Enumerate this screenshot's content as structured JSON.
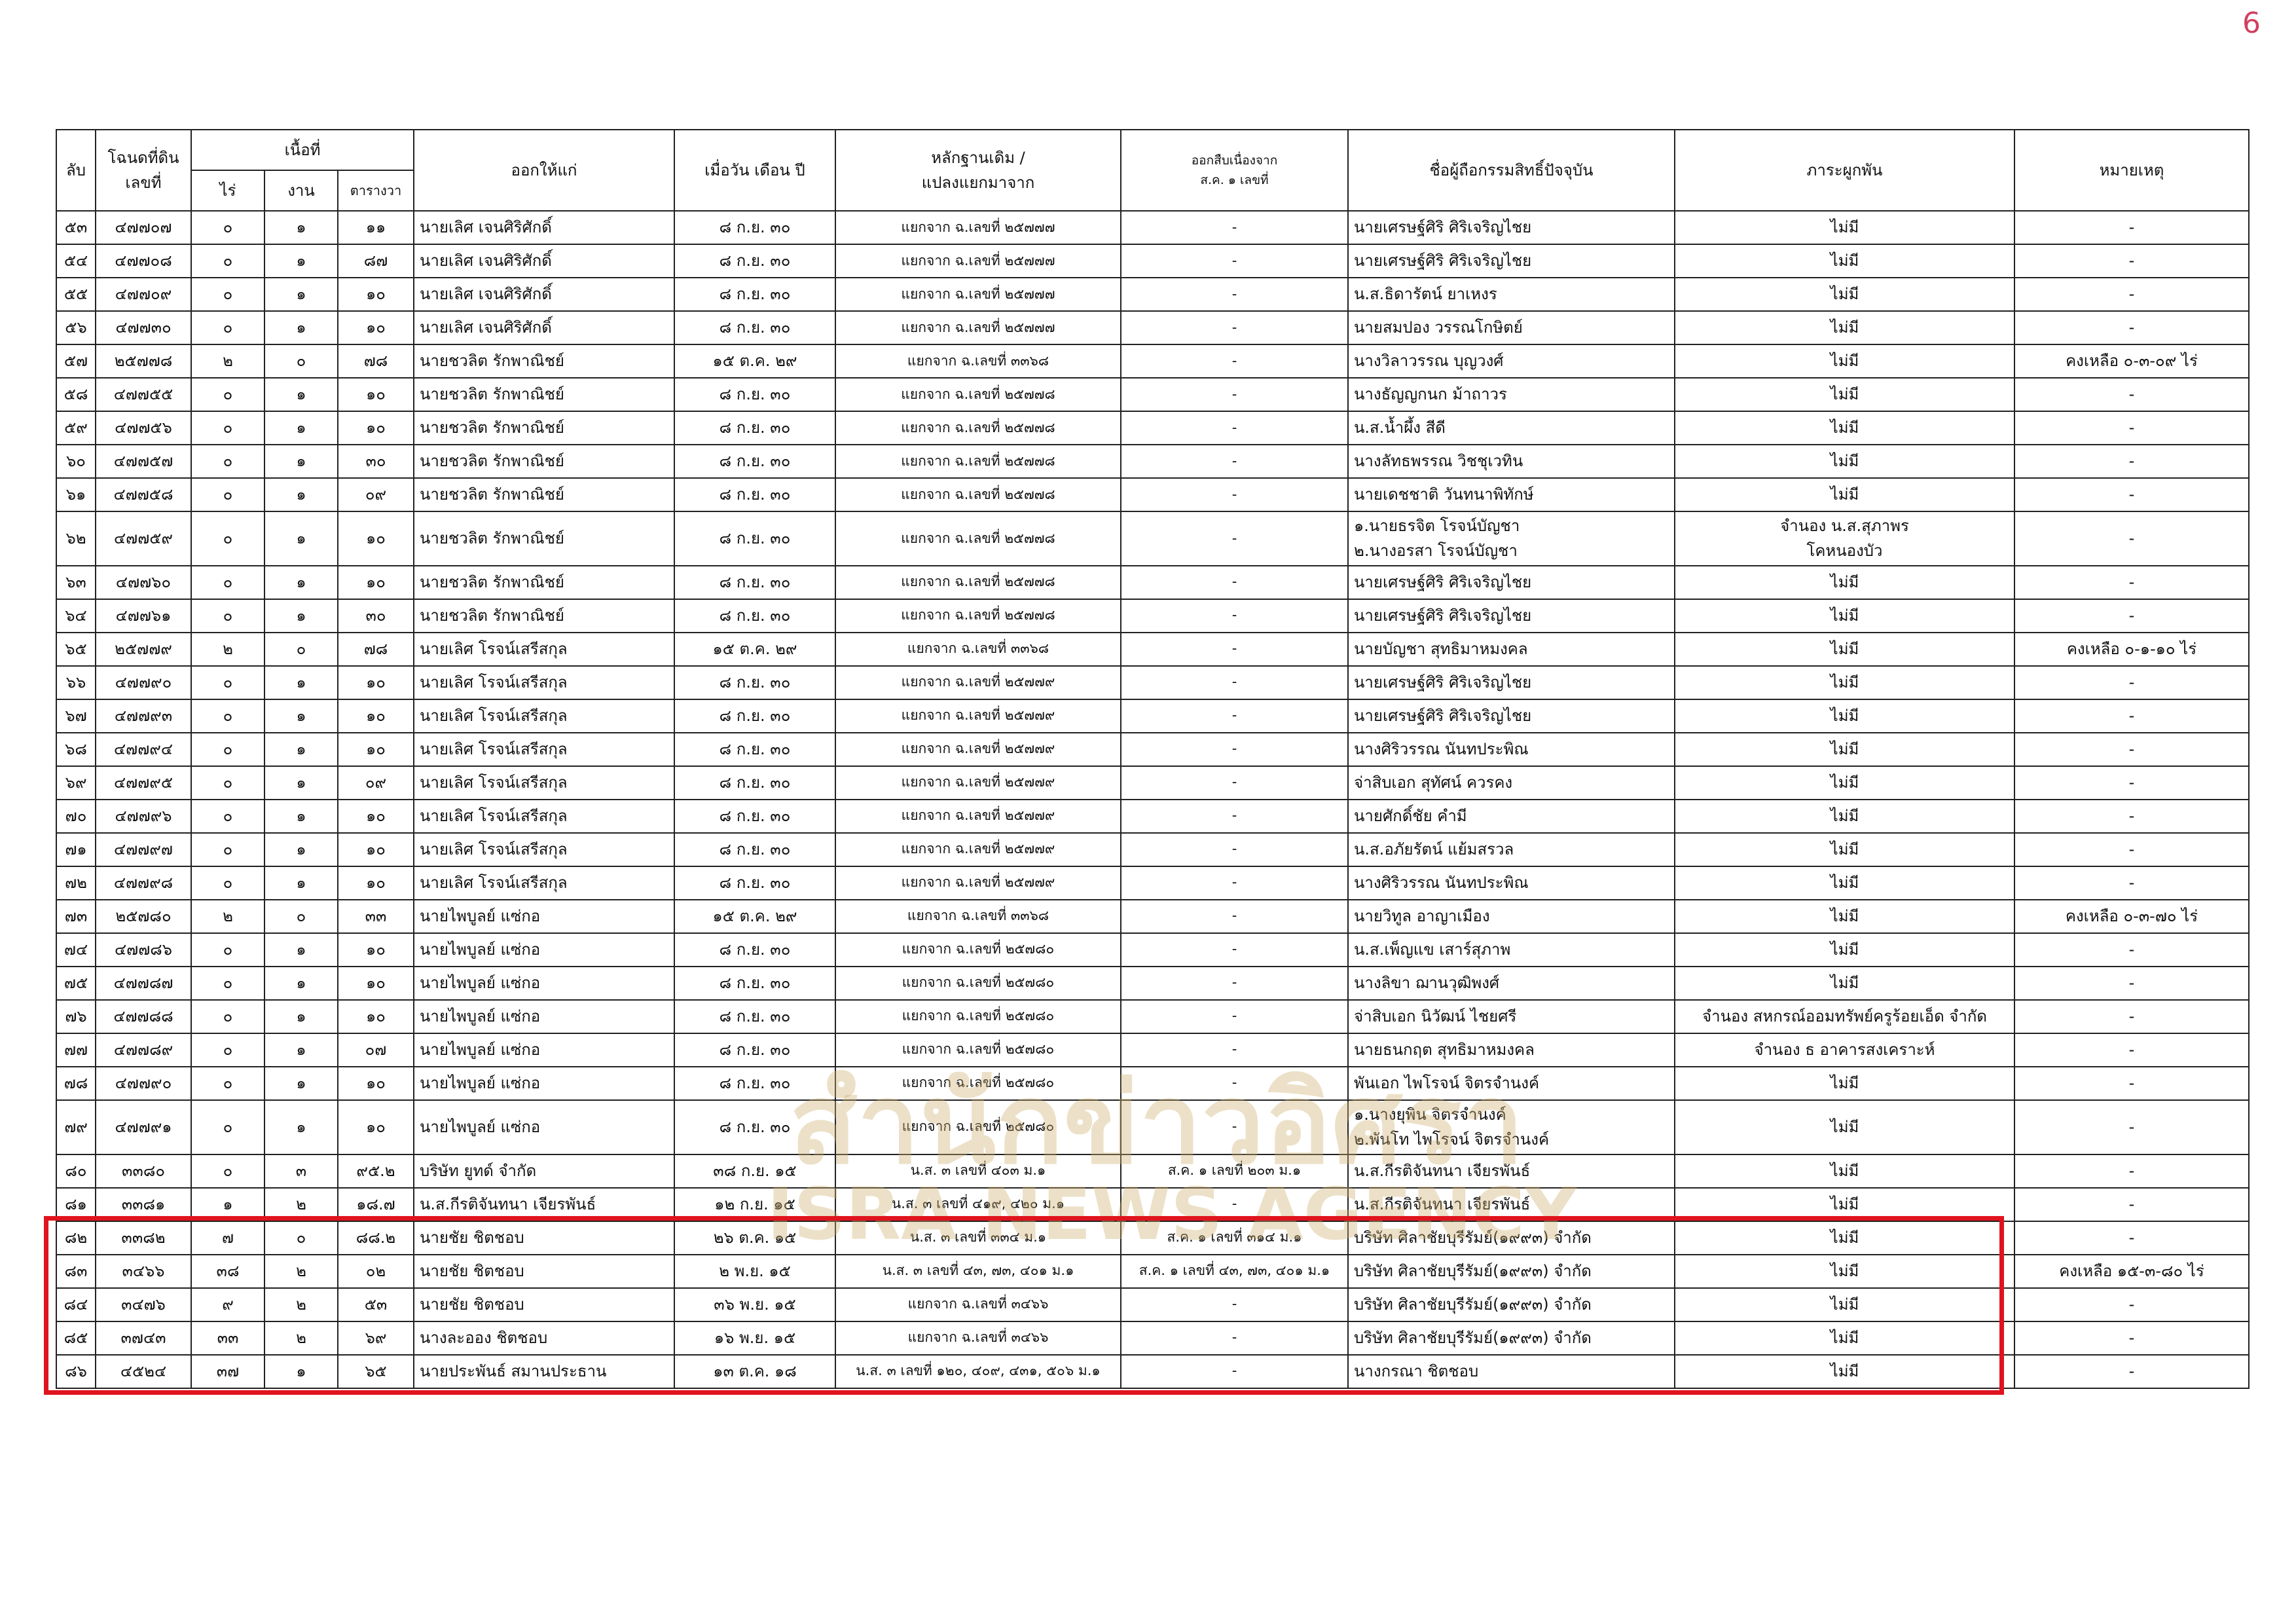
{
  "page_number": "6",
  "watermark": {
    "thai": "สำนักข่าวอิศรา",
    "english": "ISRA NEWS AGENCY"
  },
  "table": {
    "headers": [
      "ลับ",
      "โฉนดที่ดิน\nเลขที่",
      "เนื้อที่",
      "ออกให้แก่",
      "เมื่อวัน เดือน ปี",
      "หลักฐานเดิม /\nแปลงแยกมาจาก",
      "ออกสืบเนื่องจาก\nส.ค. ๑ เลขที่",
      "ชื่อผู้ถือกรรมสิทธิ์ปัจจุบัน",
      "ภาระผูกพัน",
      "หมายเหตุ"
    ],
    "area_subheaders": [
      "ไร่",
      "งาน",
      "ตารางวา"
    ],
    "rows": [
      [
        "๕๓",
        "๔๗๗๐๗",
        "๐",
        "๑",
        "๑๑",
        "นายเลิศ เจนศิริศักดิ์",
        "๘ ก.ย. ๓๐",
        "แยกจาก ฉ.เลขที่ ๒๕๗๗๗",
        "-",
        "นายเศรษฐ์ศิริ ศิริเจริญไชย",
        "ไม่มี",
        "-"
      ],
      [
        "๕๔",
        "๔๗๗๐๘",
        "๐",
        "๑",
        "๘๗",
        "นายเลิศ เจนศิริศักดิ์",
        "๘ ก.ย. ๓๐",
        "แยกจาก ฉ.เลขที่ ๒๕๗๗๗",
        "-",
        "นายเศรษฐ์ศิริ ศิริเจริญไชย",
        "ไม่มี",
        "-"
      ],
      [
        "๕๕",
        "๔๗๗๐๙",
        "๐",
        "๑",
        "๑๐",
        "นายเลิศ เจนศิริศักดิ์",
        "๘ ก.ย. ๓๐",
        "แยกจาก ฉ.เลขที่ ๒๕๗๗๗",
        "-",
        "น.ส.ธิดารัตน์ ยาเหงร",
        "ไม่มี",
        "-"
      ],
      [
        "๕๖",
        "๔๗๗๓๐",
        "๐",
        "๑",
        "๑๐",
        "นายเลิศ เจนศิริศักดิ์",
        "๘ ก.ย. ๓๐",
        "แยกจาก ฉ.เลขที่ ๒๕๗๗๗",
        "-",
        "นายสมปอง วรรณโกษิตย์",
        "ไม่มี",
        "-"
      ],
      [
        "๕๗",
        "๒๕๗๗๘",
        "๒",
        "๐",
        "๗๘",
        "นายชวลิต รักพาณิชย์",
        "๑๕ ต.ค. ๒๙",
        "แยกจาก ฉ.เลขที่ ๓๓๖๘",
        "-",
        "นางวิลาวรรณ บุญวงศ์",
        "ไม่มี",
        "คงเหลือ ๐-๓-๐๙ ไร่"
      ],
      [
        "๕๘",
        "๔๗๗๕๕",
        "๐",
        "๑",
        "๑๐",
        "นายชวลิต รักพาณิชย์",
        "๘ ก.ย. ๓๐",
        "แยกจาก ฉ.เลขที่ ๒๕๗๗๘",
        "-",
        "นางธัญญกนก ม้าถาวร",
        "ไม่มี",
        "-"
      ],
      [
        "๕๙",
        "๔๗๗๕๖",
        "๐",
        "๑",
        "๑๐",
        "นายชวลิต รักพาณิชย์",
        "๘ ก.ย. ๓๐",
        "แยกจาก ฉ.เลขที่ ๒๕๗๗๘",
        "-",
        "น.ส.น้ำผึ้ง สีดี",
        "ไม่มี",
        "-"
      ],
      [
        "๖๐",
        "๔๗๗๕๗",
        "๐",
        "๑",
        "๓๐",
        "นายชวลิต รักพาณิชย์",
        "๘ ก.ย. ๓๐",
        "แยกจาก ฉ.เลขที่ ๒๕๗๗๘",
        "-",
        "นางลัทธพรรณ วิชชุเวทิน",
        "ไม่มี",
        "-"
      ],
      [
        "๖๑",
        "๔๗๗๕๘",
        "๐",
        "๑",
        "๐๙",
        "นายชวลิต รักพาณิชย์",
        "๘ ก.ย. ๓๐",
        "แยกจาก ฉ.เลขที่ ๒๕๗๗๘",
        "-",
        "นายเดชชาติ วันทนาพิทักษ์",
        "ไม่มี",
        "-"
      ],
      [
        "๖๒",
        "๔๗๗๕๙",
        "๐",
        "๑",
        "๑๐",
        "นายชวลิต รักพาณิชย์",
        "๘ ก.ย. ๓๐",
        "แยกจาก ฉ.เลขที่ ๒๕๗๗๘",
        "-",
        "๑.นายธรจิต โรจน์บัญชา\n๒.นางอรสา โรจน์บัญชา",
        "จำนอง น.ส.สุภาพร\nโคหนองบัว",
        "-"
      ],
      [
        "๖๓",
        "๔๗๗๖๐",
        "๐",
        "๑",
        "๑๐",
        "นายชวลิต รักพาณิชย์",
        "๘ ก.ย. ๓๐",
        "แยกจาก ฉ.เลขที่ ๒๕๗๗๘",
        "-",
        "นายเศรษฐ์ศิริ ศิริเจริญไชย",
        "ไม่มี",
        "-"
      ],
      [
        "๖๔",
        "๔๗๗๖๑",
        "๐",
        "๑",
        "๓๐",
        "นายชวลิต รักพาณิชย์",
        "๘ ก.ย. ๓๐",
        "แยกจาก ฉ.เลขที่ ๒๕๗๗๘",
        "-",
        "นายเศรษฐ์ศิริ ศิริเจริญไชย",
        "ไม่มี",
        "-"
      ],
      [
        "๖๕",
        "๒๕๗๗๙",
        "๒",
        "๐",
        "๗๘",
        "นายเลิศ โรจน์เสรีสกุล",
        "๑๕ ต.ค. ๒๙",
        "แยกจาก ฉ.เลขที่ ๓๓๖๘",
        "-",
        "นายบัญชา สุทธิมาหมงคล",
        "ไม่มี",
        "คงเหลือ ๐-๑-๑๐ ไร่"
      ],
      [
        "๖๖",
        "๔๗๗๙๐",
        "๐",
        "๑",
        "๑๐",
        "นายเลิศ โรจน์เสรีสกุล",
        "๘ ก.ย. ๓๐",
        "แยกจาก ฉ.เลขที่ ๒๕๗๗๙",
        "-",
        "นายเศรษฐ์ศิริ ศิริเจริญไชย",
        "ไม่มี",
        "-"
      ],
      [
        "๖๗",
        "๔๗๗๙๓",
        "๐",
        "๑",
        "๑๐",
        "นายเลิศ โรจน์เสรีสกุล",
        "๘ ก.ย. ๓๐",
        "แยกจาก ฉ.เลขที่ ๒๕๗๗๙",
        "-",
        "นายเศรษฐ์ศิริ ศิริเจริญไชย",
        "ไม่มี",
        "-"
      ],
      [
        "๖๘",
        "๔๗๗๙๔",
        "๐",
        "๑",
        "๑๐",
        "นายเลิศ โรจน์เสรีสกุล",
        "๘ ก.ย. ๓๐",
        "แยกจาก ฉ.เลขที่ ๒๕๗๗๙",
        "-",
        "นางศิริวรรณ นันทประพิณ",
        "ไม่มี",
        "-"
      ],
      [
        "๖๙",
        "๔๗๗๙๕",
        "๐",
        "๑",
        "๐๙",
        "นายเลิศ โรจน์เสรีสกุล",
        "๘ ก.ย. ๓๐",
        "แยกจาก ฉ.เลขที่ ๒๕๗๗๙",
        "-",
        "จ่าสิบเอก สุทัศน์ ควรคง",
        "ไม่มี",
        "-"
      ],
      [
        "๗๐",
        "๔๗๗๙๖",
        "๐",
        "๑",
        "๑๐",
        "นายเลิศ โรจน์เสรีสกุล",
        "๘ ก.ย. ๓๐",
        "แยกจาก ฉ.เลขที่ ๒๕๗๗๙",
        "-",
        "นายศักดิ์ชัย คำมี",
        "ไม่มี",
        "-"
      ],
      [
        "๗๑",
        "๔๗๗๙๗",
        "๐",
        "๑",
        "๑๐",
        "นายเลิศ โรจน์เสรีสกุล",
        "๘ ก.ย. ๓๐",
        "แยกจาก ฉ.เลขที่ ๒๕๗๗๙",
        "-",
        "น.ส.อภัยรัตน์ แย้มสรวล",
        "ไม่มี",
        "-"
      ],
      [
        "๗๒",
        "๔๗๗๙๘",
        "๐",
        "๑",
        "๑๐",
        "นายเลิศ โรจน์เสรีสกุล",
        "๘ ก.ย. ๓๐",
        "แยกจาก ฉ.เลขที่ ๒๕๗๗๙",
        "-",
        "นางศิริวรรณ นันทประพิณ",
        "ไม่มี",
        "-"
      ],
      [
        "๗๓",
        "๒๕๗๘๐",
        "๒",
        "๐",
        "๓๓",
        "นายไพบูลย์ แซ่กอ",
        "๑๕ ต.ค. ๒๙",
        "แยกจาก ฉ.เลขที่ ๓๓๖๘",
        "-",
        "นายวิทูล อาญาเมือง",
        "ไม่มี",
        "คงเหลือ ๐-๓-๗๐ ไร่"
      ],
      [
        "๗๔",
        "๔๗๗๘๖",
        "๐",
        "๑",
        "๑๐",
        "นายไพบูลย์ แซ่กอ",
        "๘ ก.ย. ๓๐",
        "แยกจาก ฉ.เลขที่ ๒๕๗๘๐",
        "-",
        "น.ส.เพ็ญแข เสาร์สุภาพ",
        "ไม่มี",
        "-"
      ],
      [
        "๗๕",
        "๔๗๗๘๗",
        "๐",
        "๑",
        "๑๐",
        "นายไพบูลย์ แซ่กอ",
        "๘ ก.ย. ๓๐",
        "แยกจาก ฉ.เลขที่ ๒๕๗๘๐",
        "-",
        "นางลิขา ฌานวุฒิพงศ์",
        "ไม่มี",
        "-"
      ],
      [
        "๗๖",
        "๔๗๗๘๘",
        "๐",
        "๑",
        "๑๐",
        "นายไพบูลย์ แซ่กอ",
        "๘ ก.ย. ๓๐",
        "แยกจาก ฉ.เลขที่ ๒๕๗๘๐",
        "-",
        "จ่าสิบเอก นิวัฒน์ ไชยศรี",
        "จำนอง สหกรณ์ออมทรัพย์ครูร้อยเอ็ด จำกัด\n ",
        "-"
      ],
      [
        "๗๗",
        "๔๗๗๘๙",
        "๐",
        "๑",
        "๐๗",
        "นายไพบูลย์ แซ่กอ",
        "๘ ก.ย. ๓๐",
        "แยกจาก ฉ.เลขที่ ๒๕๗๘๐",
        "-",
        "นายธนกฤต สุทธิมาหมงคล",
        "จำนอง ธ อาคารสงเคราะห์",
        "-"
      ],
      [
        "๗๘",
        "๔๗๗๙๐",
        "๐",
        "๑",
        "๑๐",
        "นายไพบูลย์ แซ่กอ",
        "๘ ก.ย. ๓๐",
        "แยกจาก ฉ.เลขที่ ๒๕๗๘๐",
        "-",
        "พันเอก ไพโรจน์ จิตรจำนงค์",
        "ไม่มี",
        "-"
      ],
      [
        "๗๙",
        "๔๗๗๙๑",
        "๐",
        "๑",
        "๑๐",
        "นายไพบูลย์ แซ่กอ",
        "๘ ก.ย. ๓๐",
        "แยกจาก ฉ.เลขที่ ๒๕๗๘๐",
        "-",
        "๑.นางยุพิน จิตรจำนงค์\n๒.พันโท ไพโรจน์ จิตรจำนงค์",
        "ไม่มี",
        "-"
      ],
      [
        "๘๐",
        "๓๓๘๐",
        "๐",
        "๓",
        "๙๕.๒",
        "บริษัท ยูทด์ จำกัด",
        "๓๘ ก.ย. ๑๕",
        "น.ส. ๓ เลขที่ ๔๐๓ ม.๑",
        "ส.ค. ๑ เลขที่ ๒๐๓ ม.๑",
        "น.ส.กีรติจันทนา เจียรพันธ์",
        "ไม่มี",
        "-"
      ],
      [
        "๘๑",
        "๓๓๘๑",
        "๑",
        "๒",
        "๑๘.๗",
        "น.ส.กีรติจันทนา เจียรพันธ์",
        "๑๒ ก.ย. ๑๕",
        "น.ส. ๓ เลขที่ ๔๑๙, ๔๒๐ ม.๑",
        "-",
        "น.ส.กีรติจันทนา เจียรพันธ์",
        "ไม่มี",
        "-"
      ],
      [
        "๘๒",
        "๓๓๘๒",
        "๗",
        "๐",
        "๘๘.๒",
        "นายชัย ชิตชอบ",
        "๒๖ ต.ค. ๑๕",
        "น.ส. ๓ เลขที่ ๓๓๔ ม.๑",
        "ส.ค. ๑ เลขที่ ๓๑๔ ม.๑",
        "บริษัท ศิลาชัยบุรีรัมย์(๑๙๙๓) จำกัด",
        "ไม่มี",
        "-"
      ],
      [
        "๘๓",
        "๓๔๖๖",
        "๓๘",
        "๒",
        "๐๒",
        "นายชัย ชิตชอบ",
        "๒ พ.ย. ๑๕",
        "น.ส. ๓ เลขที่ ๔๓, ๗๓, ๔๐๑ ม.๑",
        "ส.ค. ๑ เลขที่ ๔๓, ๗๓, ๔๐๑ ม.๑",
        "บริษัท ศิลาชัยบุรีรัมย์(๑๙๙๓) จำกัด",
        "ไม่มี",
        "คงเหลือ ๑๕-๓-๘๐ ไร่"
      ],
      [
        "๘๔",
        "๓๔๗๖",
        "๙",
        "๒",
        "๕๓",
        "นายชัย ชิตชอบ",
        "๓๖ พ.ย. ๑๕",
        "แยกจาก ฉ.เลขที่ ๓๔๖๖",
        "-",
        "บริษัท ศิลาชัยบุรีรัมย์(๑๙๙๓) จำกัด",
        "ไม่มี",
        "-"
      ],
      [
        "๘๕",
        "๓๗๔๓",
        "๓๓",
        "๒",
        "๖๙",
        "นางละออง ชิตชอบ",
        "๑๖ พ.ย. ๑๕",
        "แยกจาก ฉ.เลขที่ ๓๔๖๖",
        "-",
        "บริษัท ศิลาชัยบุรีรัมย์(๑๙๙๓) จำกัด",
        "ไม่มี",
        "-"
      ],
      [
        "๘๖",
        "๔๕๒๔",
        "๓๗",
        "๑",
        "๖๕",
        "นายประพันธ์ สมานประธาน",
        "๑๓ ต.ค. ๑๘",
        "น.ส. ๓ เลขที่ ๑๒๐, ๔๐๙, ๔๓๑, ๕๐๖ ม.๑",
        "-",
        "นางกรณา ชิตชอบ",
        "ไม่มี",
        "-"
      ]
    ]
  }
}
